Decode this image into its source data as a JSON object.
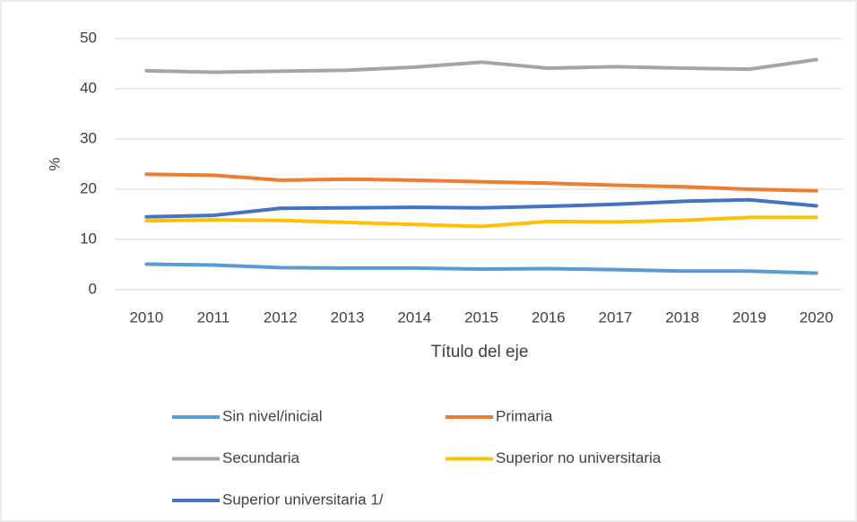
{
  "chart_data": {
    "type": "line",
    "y_label": "%",
    "x_label": "Título del eje",
    "categories": [
      "2010",
      "2011",
      "2012",
      "2013",
      "2014",
      "2015",
      "2016",
      "2017",
      "2018",
      "2019",
      "2020"
    ],
    "series": [
      {
        "name": "Sin nivel/inicial",
        "color": "#5B9BD5",
        "values": [
          5.1,
          4.9,
          4.4,
          4.3,
          4.3,
          4.1,
          4.2,
          4.0,
          3.7,
          3.7,
          3.3
        ]
      },
      {
        "name": "Primaria",
        "color": "#ED7D31",
        "values": [
          23.0,
          22.8,
          21.8,
          22.0,
          21.8,
          21.5,
          21.2,
          20.8,
          20.5,
          20.0,
          19.7
        ]
      },
      {
        "name": "Secundaria",
        "color": "#A5A5A5",
        "values": [
          43.6,
          43.3,
          43.5,
          43.7,
          44.3,
          45.3,
          44.1,
          44.4,
          44.1,
          43.9,
          45.8
        ]
      },
      {
        "name": "Superior no universitaria",
        "color": "#FFC000",
        "values": [
          13.7,
          13.9,
          13.8,
          13.4,
          13.0,
          12.6,
          13.6,
          13.5,
          13.8,
          14.4,
          14.4
        ]
      },
      {
        "name": "Superior universitaria 1/",
        "color": "#4472C4",
        "values": [
          14.5,
          14.8,
          16.2,
          16.3,
          16.4,
          16.3,
          16.6,
          17.0,
          17.6,
          17.9,
          16.7
        ]
      }
    ],
    "ylim": [
      0,
      50
    ],
    "yticks": [
      0,
      10,
      20,
      30,
      40,
      50
    ],
    "grid": true
  }
}
